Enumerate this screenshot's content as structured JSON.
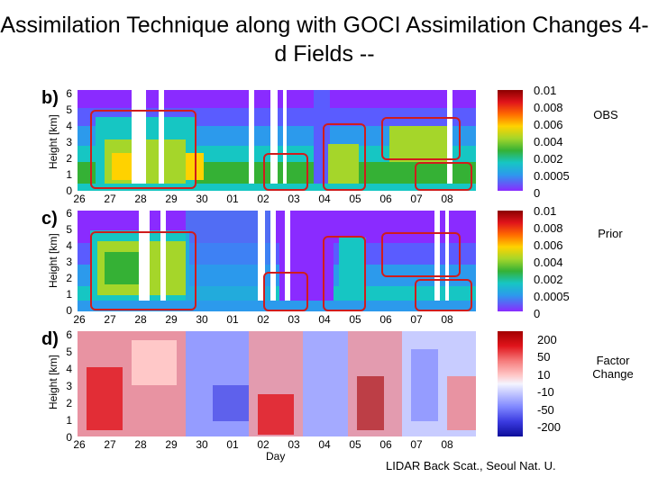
{
  "title": "Assimilation Technique along with GOCI Assimilation Changes 4-d Fields --",
  "panels": [
    {
      "label": "b)",
      "ylabel": "Height [km]",
      "side_label": "OBS",
      "colorbar": [
        "0.01",
        "0.008",
        "0.006",
        "0.004",
        "0.002",
        "0.0005",
        "0"
      ]
    },
    {
      "label": "c)",
      "ylabel": "Height [km]",
      "side_label": "Prior",
      "colorbar": [
        "0.01",
        "0.008",
        "0.006",
        "0.004",
        "0.002",
        "0.0005",
        "0"
      ]
    },
    {
      "label": "d)",
      "ylabel": "Height [km]",
      "side_label": "Factor Change",
      "colorbar": [
        "200",
        "50",
        "10",
        "-10",
        "-50",
        "-200"
      ]
    }
  ],
  "y_ticks": [
    "6",
    "5",
    "4",
    "3",
    "2",
    "1",
    "0"
  ],
  "x_ticks": [
    "26",
    "27",
    "28",
    "29",
    "30",
    "01",
    "02",
    "03",
    "04",
    "05",
    "06",
    "07",
    "08"
  ],
  "x_label": "Day",
  "credit": "LIDAR Back Scat.,  Seoul Nat. U.",
  "colors": {
    "highlight_box": "#d01c1c",
    "conc_scale": [
      "#8b0000",
      "#e0141b",
      "#ff6a00",
      "#ffd200",
      "#a5d62a",
      "#35b135",
      "#16c6c3",
      "#2c9aec",
      "#5a5cff",
      "#8a2bff"
    ],
    "factor_scale": [
      "#a30000",
      "#e0141b",
      "#f57a7a",
      "#ffc8c8",
      "#f4f4ff",
      "#c8ccff",
      "#7f87ff",
      "#3a3ae0",
      "#0d0d9a"
    ]
  }
}
